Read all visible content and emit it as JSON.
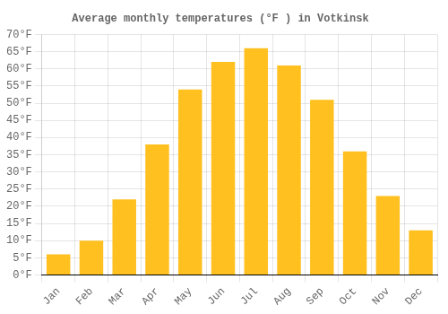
{
  "chart_data": {
    "type": "bar",
    "title": "Average monthly temperatures (°F ) in Votkinsk",
    "categories": [
      "Jan",
      "Feb",
      "Mar",
      "Apr",
      "May",
      "Jun",
      "Jul",
      "Aug",
      "Sep",
      "Oct",
      "Nov",
      "Dec"
    ],
    "values": [
      6,
      10,
      22,
      38,
      54,
      62,
      66,
      61,
      51,
      36,
      23,
      13
    ],
    "color": "#FFC020",
    "ylim": [
      0,
      70
    ],
    "yticks": [
      {
        "value": 0,
        "label": "0°F"
      },
      {
        "value": 5,
        "label": "5°F"
      },
      {
        "value": 10,
        "label": "10°F"
      },
      {
        "value": 15,
        "label": "15°F"
      },
      {
        "value": 20,
        "label": "20°F"
      },
      {
        "value": 25,
        "label": "25°F"
      },
      {
        "value": 30,
        "label": "30°F"
      },
      {
        "value": 35,
        "label": "35°F"
      },
      {
        "value": 40,
        "label": "40°F"
      },
      {
        "value": 45,
        "label": "45°F"
      },
      {
        "value": 50,
        "label": "50°F"
      },
      {
        "value": 55,
        "label": "55°F"
      },
      {
        "value": 60,
        "label": "60°F"
      },
      {
        "value": 65,
        "label": "65°F"
      },
      {
        "value": 70,
        "label": "70°F"
      }
    ],
    "grid": true
  }
}
